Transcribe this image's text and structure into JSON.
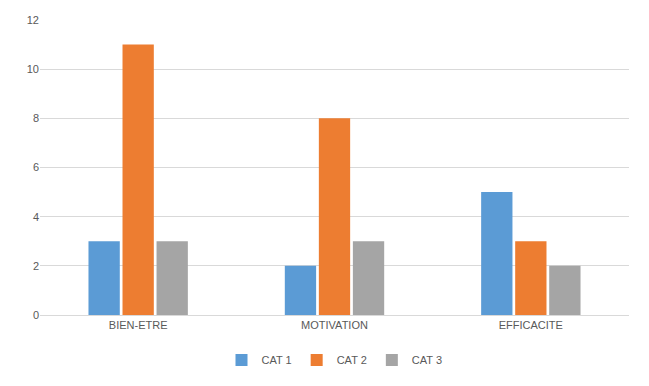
{
  "chart_data": {
    "type": "bar",
    "categories": [
      "BIEN-ETRE",
      "MOTIVATION",
      "EFFICACITE"
    ],
    "series": [
      {
        "name": "CAT 1",
        "color": "#5b9bd5",
        "values": [
          3,
          2,
          5
        ]
      },
      {
        "name": "CAT 2",
        "color": "#ed7d31",
        "values": [
          11,
          8,
          3
        ]
      },
      {
        "name": "CAT 3",
        "color": "#a5a5a5",
        "values": [
          3,
          3,
          2
        ]
      }
    ],
    "ylim": [
      0,
      12
    ],
    "yticks": [
      0,
      2,
      4,
      6,
      8,
      10,
      12
    ],
    "grid": true,
    "legend": "bottom"
  }
}
